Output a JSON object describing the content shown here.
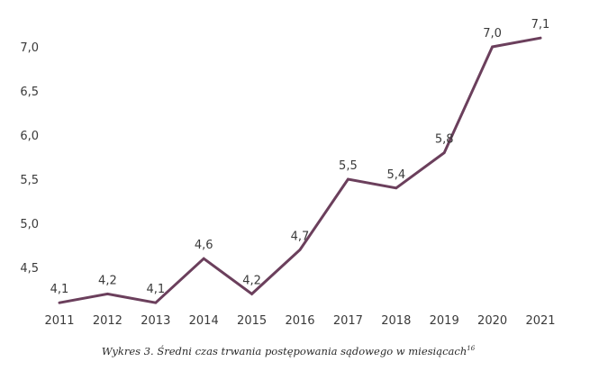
{
  "chart_data": {
    "type": "line",
    "categories": [
      "2011",
      "2012",
      "2013",
      "2014",
      "2015",
      "2016",
      "2017",
      "2018",
      "2019",
      "2020",
      "2021"
    ],
    "series": [
      {
        "values": [
          4.1,
          4.2,
          4.1,
          4.6,
          4.2,
          4.7,
          5.5,
          5.4,
          5.8,
          7.0,
          7.1
        ]
      }
    ],
    "data_labels": [
      "4,1",
      "4,2",
      "4,1",
      "4,6",
      "4,2",
      "4,7",
      "5,5",
      "5,4",
      "5,8",
      "7,0",
      "7,1"
    ],
    "yticks": [
      4.5,
      5.0,
      5.5,
      6.0,
      6.5,
      7.0
    ],
    "ytick_labels": [
      "4,5",
      "5,0",
      "5,5",
      "6,0",
      "6,5",
      "7,0"
    ],
    "ylim": [
      4.0,
      7.2
    ],
    "grid": false,
    "legend": "none",
    "line_color": "#6b3f5c",
    "title": "",
    "xlabel": "",
    "ylabel": ""
  },
  "caption": {
    "text": "Wykres 3. Średni czas trwania postępowania sądowego w miesiącach",
    "footnote": "16"
  }
}
